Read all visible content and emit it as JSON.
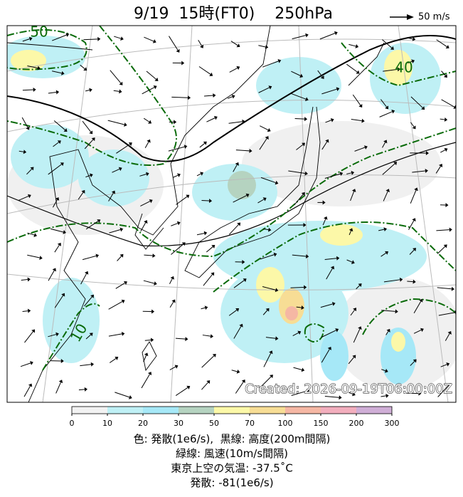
{
  "title": "9/19  15時(FT0)    250hPa",
  "wind_legend": "50 m/s",
  "contour_labels": [
    "50",
    "40",
    "10"
  ],
  "created": "Created: 2026-09-19T06:00:00Z",
  "colorbar": {
    "ticks": [
      0,
      10,
      20,
      30,
      50,
      70,
      100,
      150,
      200,
      300
    ],
    "colors": [
      "#f2f2f2",
      "#bff0f5",
      "#a6e8f7",
      "#b5d3c0",
      "#fcf8a8",
      "#f7dd95",
      "#f5b7a4",
      "#f2aebd",
      "#cfaed6"
    ]
  },
  "caption": [
    "色: 発散(1e6/s),  黒線: 高度(200m間隔)",
    "緑線: 風速(10m/s間隔)",
    "東京上空の気温: -37.5˚C",
    "発散: -81(1e6/s)"
  ]
}
